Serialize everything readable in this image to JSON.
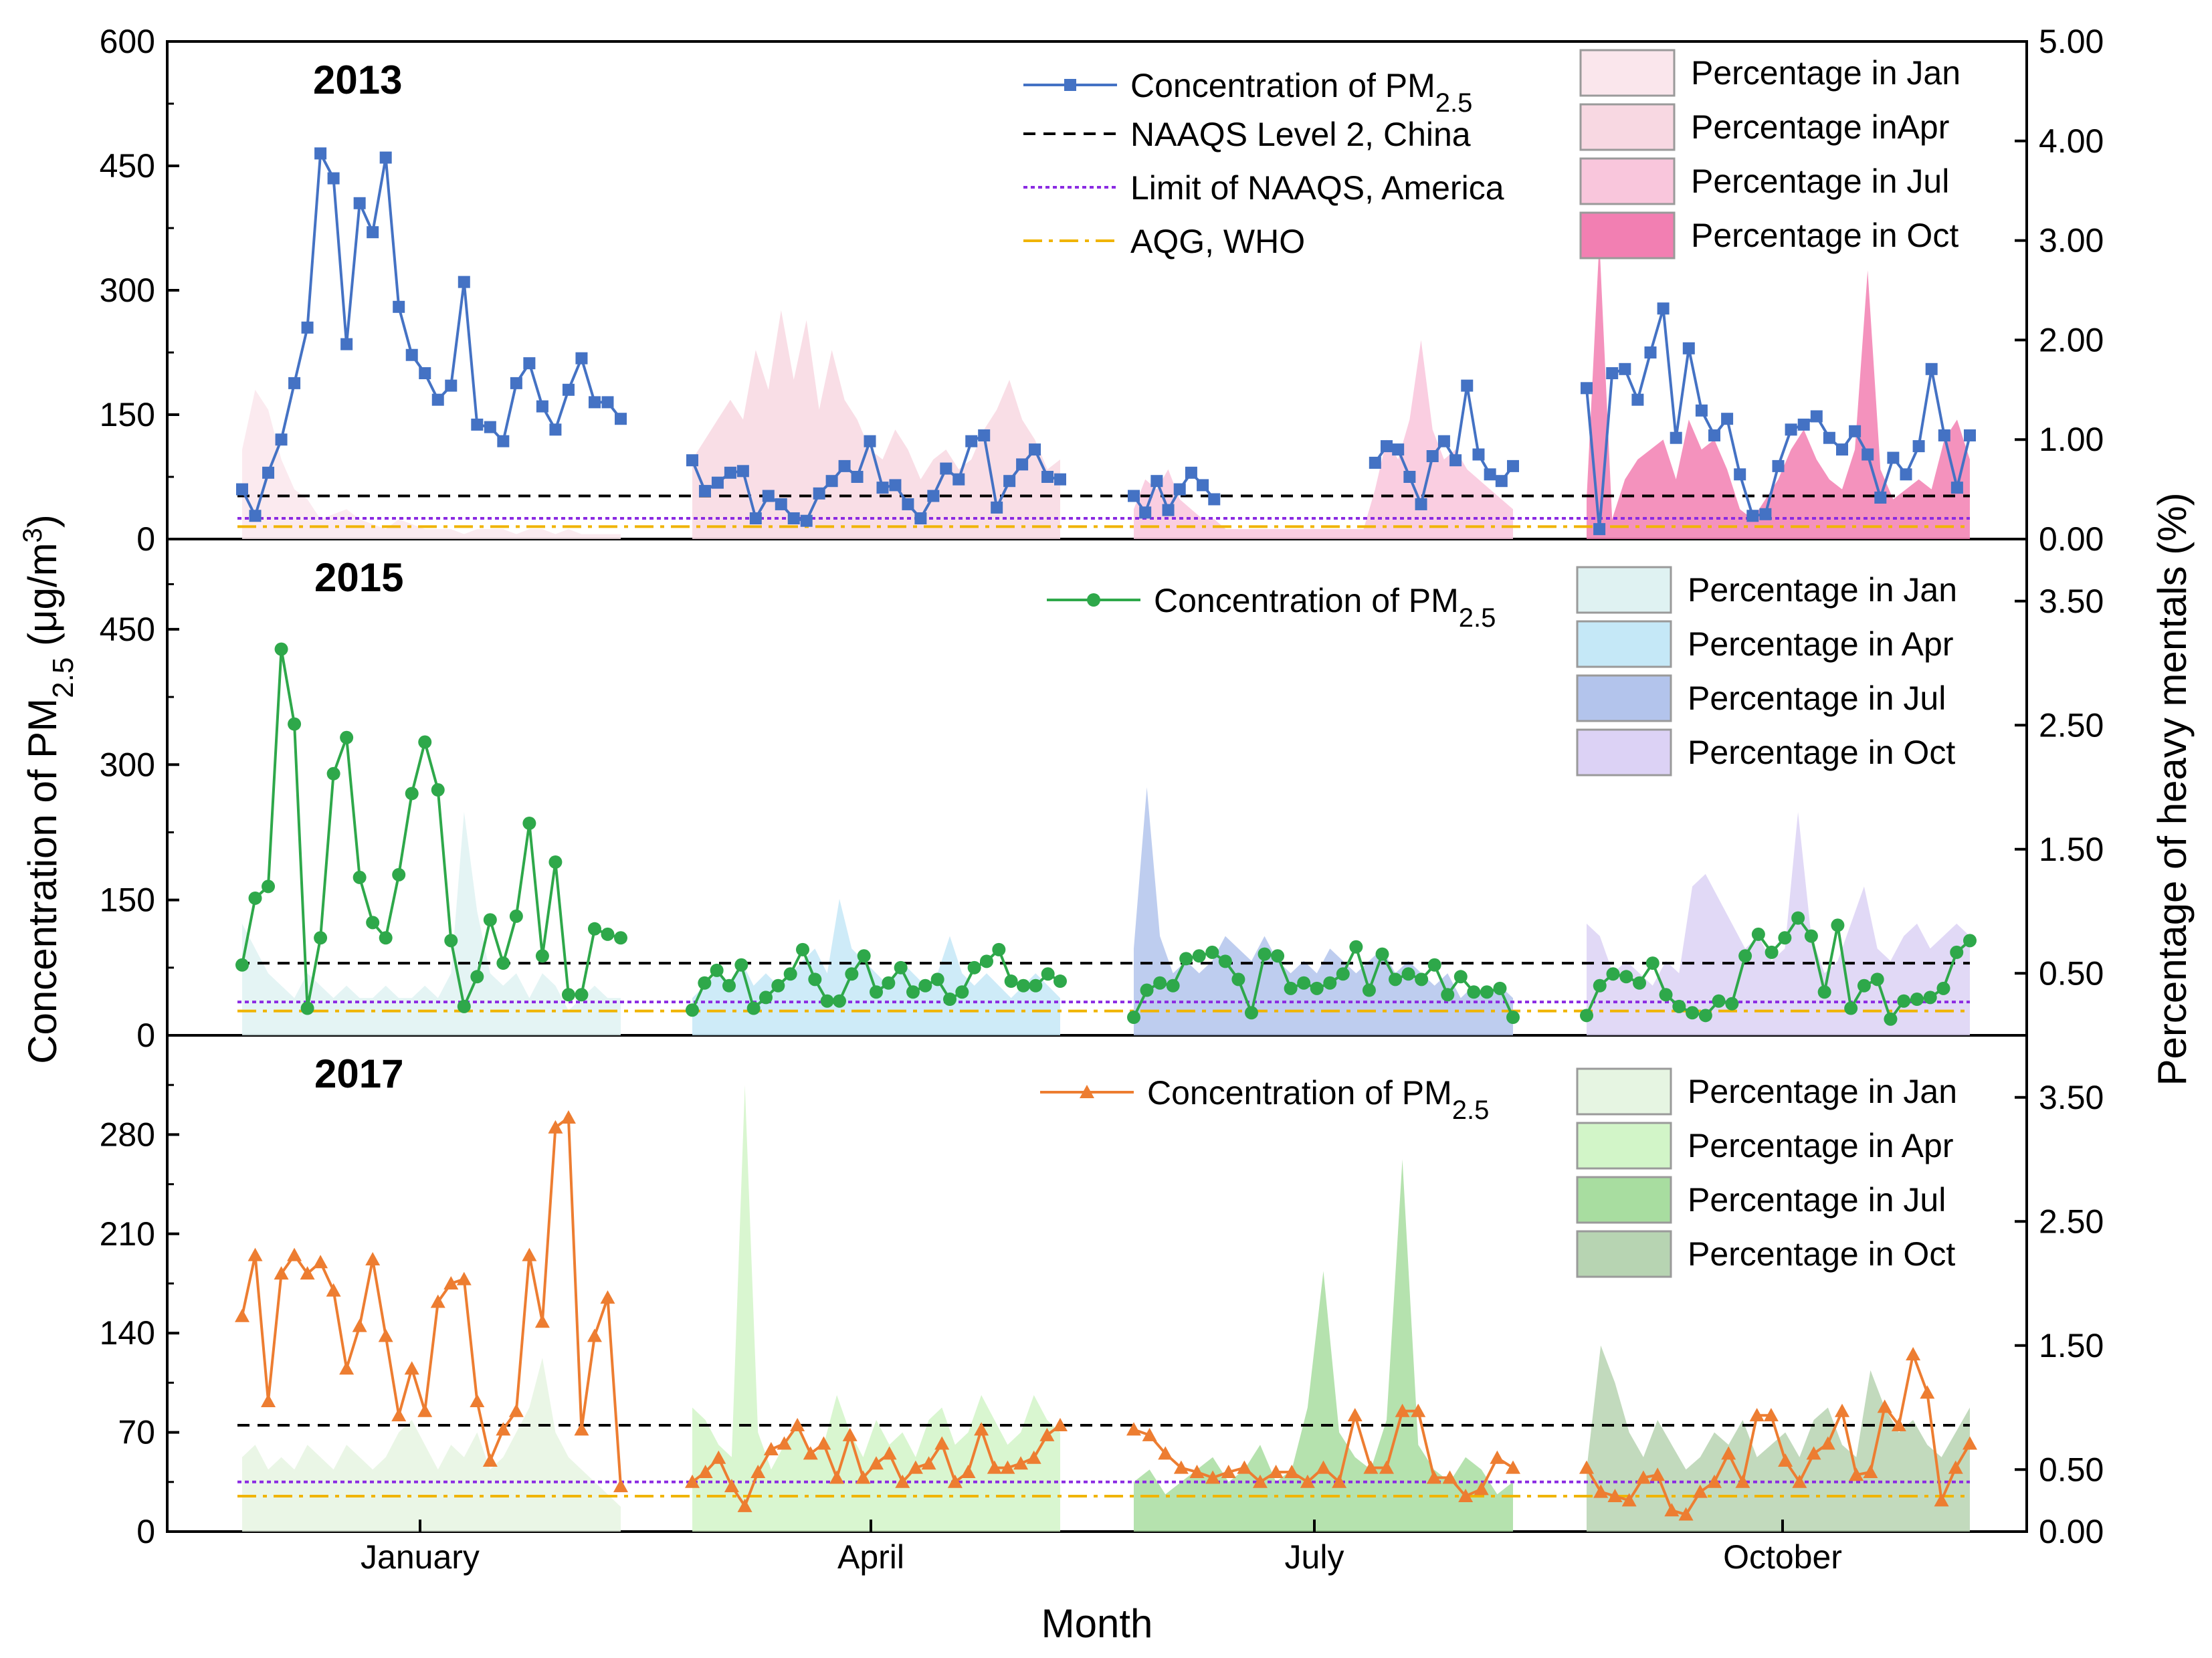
{
  "chart_data": {
    "type": "line",
    "xlabel": "Month",
    "ylabel_left_prefix": "Concentration of PM",
    "ylabel_left_sub": "2.5",
    "ylabel_left_unit": " (μg/m",
    "ylabel_left_sup": "3",
    "ylabel_left_close": ")",
    "ylabel_right": "Percentage of heavy mentals (%)",
    "month_labels": [
      "January",
      "April",
      "July",
      "October"
    ],
    "panels": [
      {
        "year": "2013",
        "ylim": [
          0,
          600
        ],
        "yticks": [
          "0",
          "150",
          "300",
          "450",
          "600"
        ],
        "y2lim": [
          0,
          5
        ],
        "y2ticks": [
          "0.00",
          "1.00",
          "2.00",
          "3.00",
          "4.00",
          "5.00"
        ],
        "color": "#4472C4",
        "marker": "square",
        "thresholds": {
          "china": 52,
          "america": 25,
          "who": 15
        },
        "series_label_prefix": "Concentration of PM",
        "series_label_sub": "2.5",
        "threshold_legend": [
          "NAAQS Level 2, China",
          "Limit of NAAQS, America",
          "AQG, WHO"
        ],
        "months": [
          {
            "label": "Percentage in Jan",
            "color": "#fae6ec",
            "pm": [
              60,
              28,
              80,
              120,
              188,
              255,
              465,
              435,
              235,
              405,
              370,
              460,
              280,
              222,
              200,
              168,
              185,
              310,
              138,
              135,
              118,
              188,
              212,
              160,
              132,
              180,
              218,
              165,
              165,
              145
            ],
            "pct": [
              0.9,
              1.5,
              1.3,
              0.8,
              0.5,
              0.4,
              0.2,
              0.25,
              0.3,
              0.2,
              0.15,
              0.1,
              0.2,
              0.15,
              0.1,
              0.1,
              0.1,
              0.05,
              0.1,
              0.1,
              0.1,
              0.05,
              0.1,
              0.1,
              0.05,
              0.1,
              0.05,
              0.05,
              0.05,
              0.05
            ]
          },
          {
            "label": "Percentage inApr",
            "color": "#f8d8e2",
            "pm": [
              95,
              58,
              68,
              80,
              82,
              25,
              52,
              42,
              25,
              22,
              55,
              70,
              88,
              75,
              118,
              62,
              65,
              42,
              25,
              52,
              85,
              72,
              118,
              125,
              38,
              70,
              90,
              108,
              75,
              72
            ],
            "pct": [
              0.8,
              1.0,
              1.2,
              1.4,
              1.2,
              1.9,
              1.5,
              2.3,
              1.6,
              2.2,
              1.3,
              1.9,
              1.4,
              1.2,
              0.9,
              0.8,
              1.1,
              0.9,
              0.6,
              0.8,
              0.9,
              0.7,
              0.8,
              1.1,
              1.3,
              1.6,
              1.2,
              1.0,
              0.7,
              0.8
            ]
          },
          {
            "label": "Percentage in Jul",
            "color": "#f9c6dc",
            "pm": [
              52,
              32,
              70,
              35,
              60,
              80,
              65,
              48,
              null,
              null,
              null,
              null,
              null,
              null,
              null,
              null,
              null,
              null,
              null,
              null,
              null,
              92,
              112,
              108,
              75,
              42,
              100,
              118,
              95,
              185,
              102,
              78,
              70,
              88
            ],
            "pct": [
              0.3,
              0.6,
              0.5,
              0.7,
              0.4,
              0.3,
              0.2,
              0.2,
              0.1,
              0.1,
              0.1,
              0.1,
              0.1,
              0.1,
              0.1,
              0.1,
              0.1,
              0.1,
              0.1,
              0.1,
              0.1,
              0.5,
              1.0,
              0.8,
              1.2,
              2.0,
              1.1,
              0.8,
              0.9,
              0.7,
              0.6,
              0.5,
              0.4,
              0.3
            ]
          },
          {
            "label": "Percentage in Oct",
            "color": "#f27fb2",
            "pm": [
              182,
              12,
              200,
              205,
              168,
              225,
              278,
              122,
              230,
              155,
              125,
              145,
              78,
              28,
              30,
              88,
              132,
              138,
              148,
              122,
              108,
              130,
              102,
              50,
              98,
              78,
              112,
              205,
              125,
              62,
              125
            ],
            "pct": [
              0.4,
              3.0,
              0.2,
              0.6,
              0.8,
              0.9,
              1.0,
              0.6,
              1.2,
              0.9,
              1.0,
              0.7,
              0.3,
              0.2,
              0.4,
              0.6,
              0.9,
              1.1,
              0.8,
              0.6,
              0.5,
              0.9,
              2.7,
              0.7,
              0.4,
              0.5,
              0.6,
              0.5,
              1.0,
              1.2,
              0.8
            ]
          }
        ]
      },
      {
        "year": "2015",
        "ylim": [
          0,
          550
        ],
        "yticks": [
          "0",
          "150",
          "300",
          "450"
        ],
        "y2lim": [
          0,
          4
        ],
        "y2ticks": [
          "0.50",
          "1.50",
          "2.50",
          "3.50"
        ],
        "color": "#2ea84a",
        "marker": "circle",
        "thresholds": {
          "china": 80,
          "america": 37,
          "who": 27
        },
        "series_label_prefix": "Concentration of PM",
        "series_label_sub": "2.5",
        "months": [
          {
            "label": "Percentage in Jan",
            "color": "#dff2f2",
            "pm": [
              78,
              152,
              165,
              428,
              345,
              30,
              108,
              290,
              330,
              175,
              125,
              108,
              178,
              268,
              325,
              272,
              105,
              32,
              65,
              128,
              80,
              132,
              235,
              88,
              192,
              45,
              45,
              118,
              112,
              108
            ],
            "pct": [
              0.9,
              0.7,
              0.5,
              0.4,
              0.3,
              0.5,
              0.4,
              0.3,
              0.4,
              0.3,
              0.3,
              0.4,
              0.3,
              0.3,
              0.4,
              0.3,
              0.5,
              1.8,
              1.0,
              0.5,
              0.4,
              0.5,
              0.3,
              0.5,
              0.4,
              0.2,
              0.3,
              0.4,
              0.3,
              0.3
            ]
          },
          {
            "label": "Percentage in Apr",
            "color": "#c5e8f7",
            "pm": [
              28,
              58,
              72,
              55,
              78,
              30,
              42,
              55,
              68,
              95,
              62,
              38,
              38,
              68,
              88,
              48,
              58,
              75,
              48,
              55,
              62,
              40,
              48,
              75,
              82,
              95,
              60,
              55,
              55,
              68,
              60
            ],
            "pct": [
              0.3,
              0.4,
              0.5,
              0.4,
              0.6,
              0.4,
              0.5,
              0.4,
              0.5,
              0.6,
              0.7,
              0.5,
              1.1,
              0.7,
              0.6,
              0.5,
              0.4,
              0.6,
              0.5,
              0.4,
              0.5,
              0.8,
              0.5,
              0.4,
              0.5,
              0.4,
              0.3,
              0.4,
              0.5,
              0.4,
              0.3
            ]
          },
          {
            "label": "Percentage in Jul",
            "color": "#b3c4ec",
            "pm": [
              20,
              50,
              58,
              55,
              85,
              88,
              92,
              82,
              62,
              25,
              90,
              88,
              52,
              58,
              52,
              58,
              68,
              98,
              50,
              90,
              62,
              68,
              62,
              78,
              45,
              65,
              48,
              48,
              52,
              20
            ],
            "pct": [
              0.7,
              2.0,
              0.8,
              0.5,
              0.6,
              0.5,
              0.6,
              0.8,
              0.7,
              0.6,
              0.8,
              0.6,
              0.5,
              0.6,
              0.5,
              0.7,
              0.6,
              0.5,
              0.6,
              0.7,
              0.5,
              0.6,
              0.5,
              0.4,
              0.5,
              0.3,
              0.4,
              0.3,
              0.4,
              0.3
            ]
          },
          {
            "label": "Percentage in Oct",
            "color": "#dcd2f5",
            "pm": [
              22,
              55,
              68,
              65,
              58,
              80,
              45,
              32,
              25,
              22,
              38,
              35,
              88,
              112,
              92,
              108,
              130,
              110,
              48,
              122,
              30,
              55,
              62,
              18,
              38,
              40,
              42,
              52,
              92,
              105
            ],
            "pct": [
              0.9,
              0.8,
              0.5,
              0.6,
              0.5,
              0.4,
              0.6,
              0.5,
              1.2,
              1.3,
              1.1,
              0.9,
              0.7,
              0.8,
              0.6,
              0.7,
              1.8,
              0.8,
              0.5,
              0.6,
              0.9,
              1.2,
              0.7,
              0.6,
              0.8,
              0.9,
              0.7,
              0.8,
              0.9,
              0.8
            ]
          }
        ]
      },
      {
        "year": "2017",
        "ylim": [
          0,
          350
        ],
        "yticks": [
          "0",
          "70",
          "140",
          "210",
          "280"
        ],
        "y2lim": [
          0,
          4
        ],
        "y2ticks": [
          "0.00",
          "0.50",
          "1.50",
          "2.50",
          "3.50"
        ],
        "color": "#ed7d31",
        "marker": "triangle",
        "thresholds": {
          "china": 75,
          "america": 35,
          "who": 25
        },
        "series_label_prefix": "Concentration of PM",
        "series_label_sub": "2.5",
        "months": [
          {
            "label": "Percentage in Jan",
            "color": "#e6f5e2",
            "pm": [
              152,
              195,
              92,
              182,
              195,
              182,
              190,
              170,
              115,
              145,
              192,
              138,
              82,
              115,
              85,
              162,
              175,
              178,
              92,
              50,
              72,
              85,
              195,
              148,
              285,
              292,
              72,
              138,
              165,
              32
            ],
            "pct": [
              0.6,
              0.7,
              0.5,
              0.6,
              0.5,
              0.7,
              0.6,
              0.5,
              0.7,
              0.6,
              0.5,
              0.6,
              0.8,
              0.9,
              0.7,
              0.5,
              0.7,
              0.6,
              0.8,
              0.5,
              0.6,
              0.8,
              1.0,
              1.4,
              0.8,
              0.6,
              0.5,
              0.4,
              0.3,
              0.2
            ]
          },
          {
            "label": "Percentage in Apr",
            "color": "#d2f5c8",
            "pm": [
              35,
              42,
              52,
              32,
              18,
              42,
              58,
              62,
              75,
              55,
              62,
              38,
              68,
              38,
              48,
              55,
              35,
              45,
              48,
              62,
              35,
              42,
              72,
              45,
              45,
              48,
              52,
              68,
              75
            ],
            "pct": [
              1.0,
              0.9,
              0.7,
              0.6,
              3.6,
              0.8,
              0.5,
              0.7,
              0.9,
              0.6,
              0.7,
              1.1,
              0.8,
              0.6,
              0.9,
              0.7,
              0.8,
              0.6,
              0.9,
              1.0,
              0.7,
              0.8,
              1.1,
              0.9,
              0.7,
              0.8,
              1.1,
              0.9,
              0.8
            ]
          },
          {
            "label": "Percentage in Jul",
            "color": "#a8dda0",
            "pm": [
              72,
              68,
              55,
              45,
              42,
              38,
              42,
              45,
              35,
              42,
              42,
              35,
              45,
              35,
              82,
              45,
              45,
              85,
              85,
              38,
              38,
              25,
              30,
              52,
              45
            ],
            "pct": [
              0.4,
              0.5,
              0.3,
              0.4,
              0.5,
              0.6,
              0.4,
              0.5,
              0.7,
              0.4,
              0.5,
              1.0,
              2.1,
              0.8,
              0.6,
              0.5,
              0.9,
              3.0,
              0.7,
              0.5,
              0.4,
              0.6,
              0.5,
              0.3,
              0.4
            ]
          },
          {
            "label": "Percentage in Oct",
            "color": "#b7d4b2",
            "pm": [
              45,
              28,
              25,
              22,
              38,
              40,
              15,
              12,
              28,
              35,
              55,
              35,
              82,
              82,
              50,
              35,
              55,
              62,
              85,
              40,
              42,
              88,
              75,
              125,
              98,
              22,
              45,
              62
            ],
            "pct": [
              0.5,
              1.5,
              1.2,
              0.8,
              0.6,
              0.9,
              0.7,
              0.5,
              0.6,
              0.8,
              0.7,
              0.9,
              0.6,
              0.7,
              0.8,
              0.6,
              0.9,
              1.0,
              0.7,
              0.6,
              1.3,
              1.0,
              0.8,
              0.9,
              0.7,
              0.6,
              0.8,
              1.0
            ]
          }
        ]
      }
    ]
  }
}
